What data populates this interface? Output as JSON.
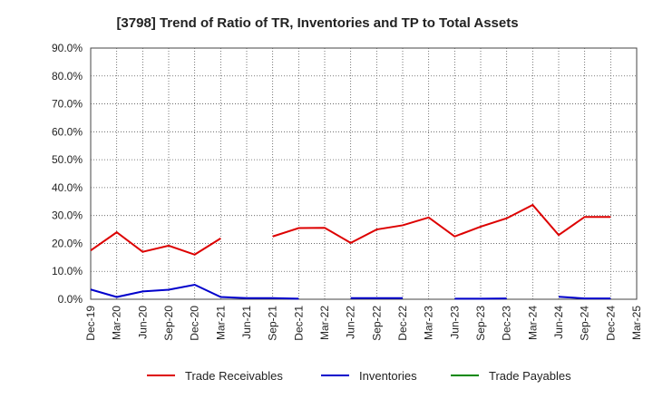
{
  "chart_data": {
    "type": "line",
    "title": "[3798]  Trend of Ratio of TR, Inventories and TP to Total Assets",
    "xlabel": "",
    "ylabel": "",
    "ylim": [
      0,
      90
    ],
    "y_ticks": [
      "0.0%",
      "10.0%",
      "20.0%",
      "30.0%",
      "40.0%",
      "50.0%",
      "60.0%",
      "70.0%",
      "80.0%",
      "90.0%"
    ],
    "categories": [
      "Dec-19",
      "Mar-20",
      "Jun-20",
      "Sep-20",
      "Dec-20",
      "Mar-21",
      "Jun-21",
      "Sep-21",
      "Dec-21",
      "Mar-22",
      "Jun-22",
      "Sep-22",
      "Dec-22",
      "Mar-23",
      "Jun-23",
      "Sep-23",
      "Dec-23",
      "Mar-24",
      "Jun-24",
      "Sep-24",
      "Dec-24",
      "Mar-25"
    ],
    "grid": true,
    "legend_position": "bottom",
    "series": [
      {
        "name": "Trade Receivables",
        "color": "#dd0000",
        "values": [
          17.5,
          24.0,
          17.0,
          19.2,
          16.0,
          21.8,
          null,
          22.5,
          25.5,
          25.6,
          20.2,
          25.0,
          26.5,
          29.3,
          22.5,
          26.0,
          29.0,
          33.8,
          23.0,
          29.5,
          29.5,
          null
        ]
      },
      {
        "name": "Inventories",
        "color": "#0000cc",
        "values": [
          3.5,
          0.8,
          2.8,
          3.4,
          5.2,
          0.8,
          0.4,
          0.4,
          0.2,
          null,
          0.4,
          0.4,
          0.4,
          null,
          0.2,
          0.2,
          0.3,
          null,
          0.9,
          0.3,
          0.3,
          null
        ]
      },
      {
        "name": "Trade Payables",
        "color": "#008800",
        "values": [
          null,
          null,
          null,
          null,
          null,
          null,
          null,
          null,
          null,
          null,
          null,
          null,
          null,
          null,
          null,
          null,
          null,
          null,
          null,
          null,
          null,
          null
        ]
      }
    ]
  }
}
